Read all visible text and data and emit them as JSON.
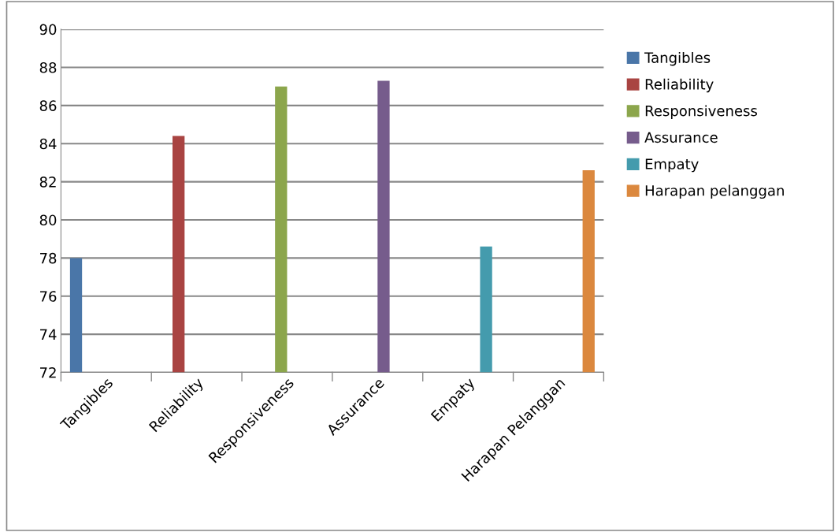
{
  "chart_data": {
    "type": "bar",
    "categories": [
      "Tangibles",
      "Reliability",
      "Responsiveness",
      "Assurance",
      "Empaty",
      "Harapan Pelanggan"
    ],
    "series": [
      {
        "name": "Tangibles",
        "color": "#4a76a8",
        "values": [
          78.0,
          null,
          null,
          null,
          null,
          null
        ]
      },
      {
        "name": "Reliability",
        "color": "#a94442",
        "values": [
          null,
          84.4,
          null,
          null,
          null,
          null
        ]
      },
      {
        "name": "Responsiveness",
        "color": "#8ca64c",
        "values": [
          null,
          null,
          87.0,
          null,
          null,
          null
        ]
      },
      {
        "name": "Assurance",
        "color": "#765c8c",
        "values": [
          null,
          null,
          null,
          87.3,
          null,
          null
        ]
      },
      {
        "name": "Empaty",
        "color": "#449bad",
        "values": [
          null,
          null,
          null,
          null,
          78.6,
          null
        ]
      },
      {
        "name": "Harapan pelanggan",
        "color": "#db883e",
        "values": [
          null,
          null,
          null,
          null,
          null,
          82.6
        ]
      }
    ],
    "ylim": [
      72,
      90
    ],
    "yticks": [
      72,
      74,
      76,
      78,
      80,
      82,
      84,
      86,
      88,
      90
    ],
    "grid": "y",
    "legend": "right"
  }
}
